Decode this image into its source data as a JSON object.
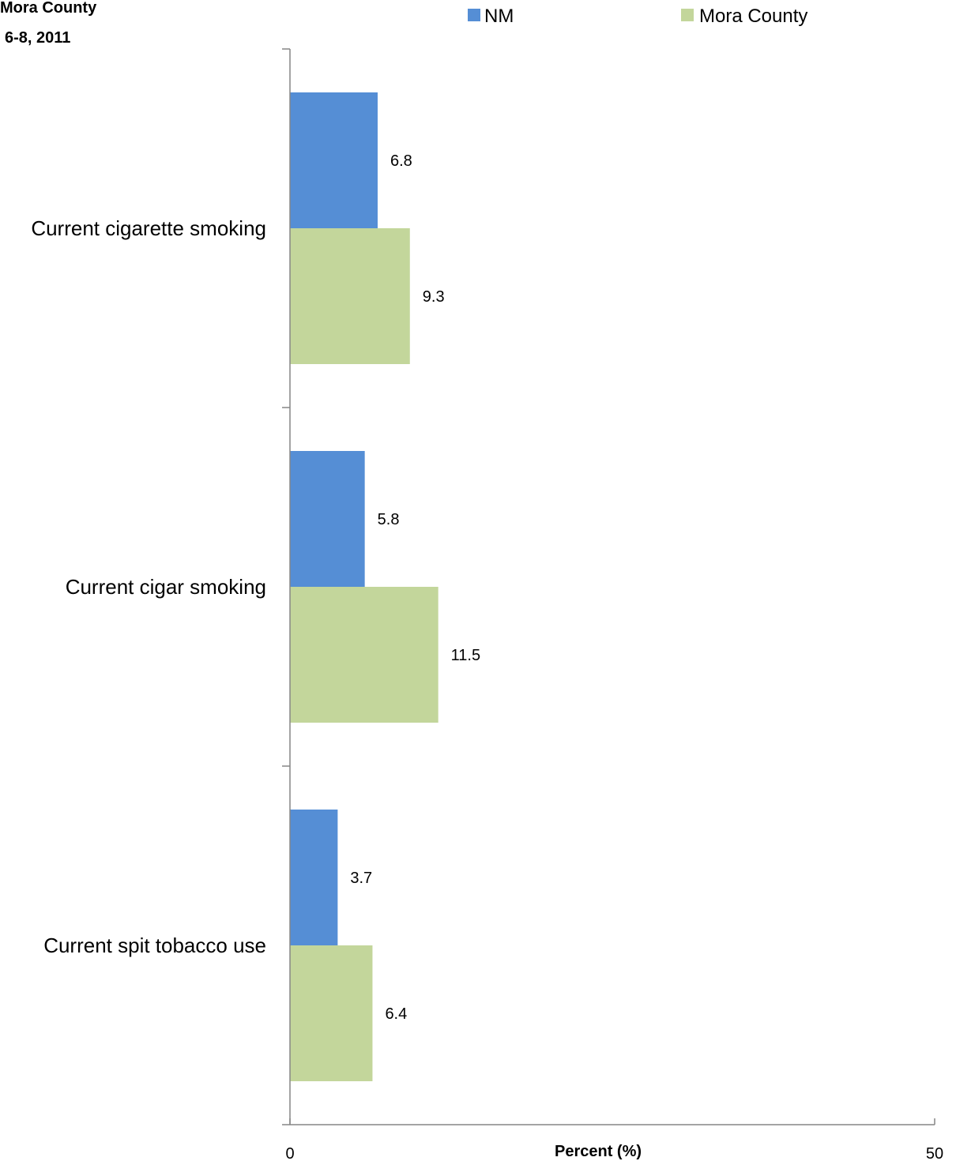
{
  "title_lines": [
    "Mora County",
    "6-8, 2011"
  ],
  "chart_data": {
    "type": "bar",
    "orientation": "horizontal",
    "categories": [
      "Current cigarette smoking",
      "Current cigar smoking",
      "Current spit tobacco use"
    ],
    "series": [
      {
        "name": "NM",
        "color": "#558ED5",
        "values": [
          6.8,
          5.8,
          3.7
        ]
      },
      {
        "name": "Mora County",
        "color": "#C3D69B",
        "values": [
          9.3,
          11.5,
          6.4
        ]
      }
    ],
    "xlabel": "Percent (%)",
    "ylabel": "",
    "xlim": [
      0,
      50
    ],
    "x_ticks": [
      "0",
      "50"
    ],
    "grid": false,
    "legend_position": "top"
  }
}
